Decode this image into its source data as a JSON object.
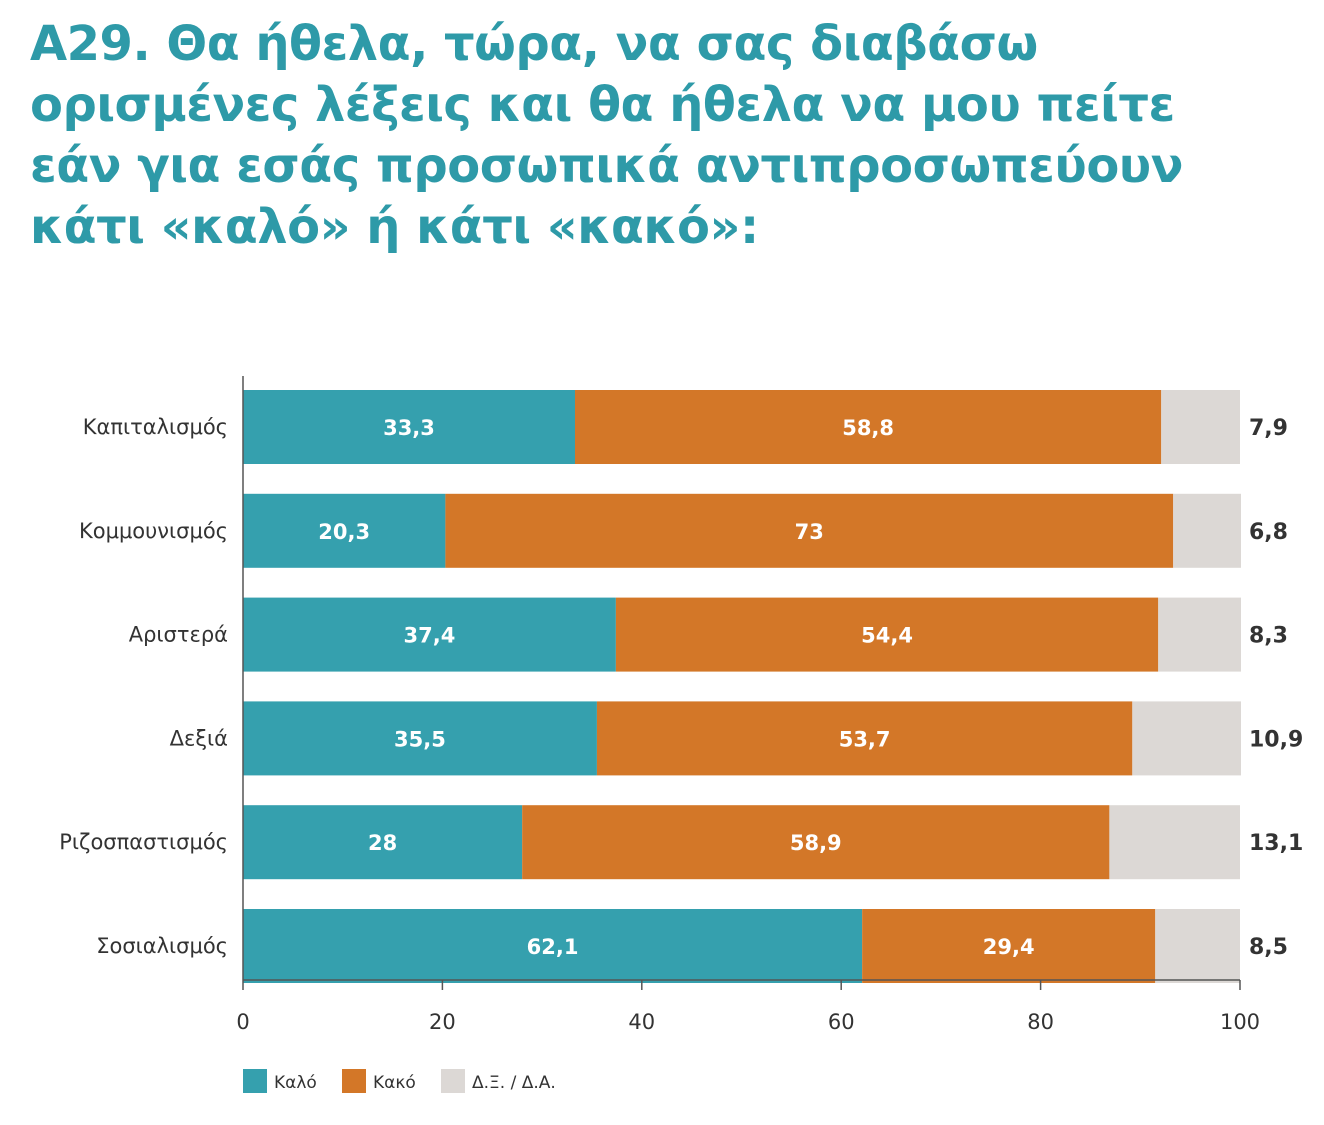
{
  "title_lines": [
    "Α29. Θα ήθελα, τώρα, να σας διαβάσω",
    "ορισμένες λέξεις και θα ήθελα να μου πείτε",
    "εάν για εσάς προσωπικά αντιπροσωπεύουν",
    "κάτι «καλό» ή κάτι «κακό»:"
  ],
  "colors": {
    "title": "#2e9aa8",
    "kalo": "#35a0ae",
    "kako": "#d37728",
    "dk": "#dcd8d5",
    "axis": "#555555"
  },
  "chart_data": {
    "type": "bar",
    "orientation": "horizontal",
    "stacked": true,
    "title": "Α29. Θα ήθελα, τώρα, να σας διαβάσω ορισμένες λέξεις και θα ήθελα να μου πείτε εάν για εσάς προσωπικά αντιπροσωπεύουν κάτι «καλό» ή κάτι «κακό»:",
    "categories": [
      "Καπιταλισμός",
      "Κομμουνισμός",
      "Αριστερά",
      "Δεξιά",
      "Ριζοσπαστισμός",
      "Σοσιαλισμός"
    ],
    "series": [
      {
        "name": "Καλό",
        "values": [
          33.3,
          20.3,
          37.4,
          35.5,
          28,
          62.1
        ],
        "labels": [
          "33,3",
          "20,3",
          "37,4",
          "35,5",
          "28",
          "62,1"
        ],
        "color": "#35a0ae"
      },
      {
        "name": "Κακό",
        "values": [
          58.8,
          73,
          54.4,
          53.7,
          58.9,
          29.4
        ],
        "labels": [
          "58,8",
          "73",
          "54,4",
          "53,7",
          "58,9",
          "29,4"
        ],
        "color": "#d37728"
      },
      {
        "name": "Δ.Ξ. / Δ.Α.",
        "values": [
          7.9,
          6.8,
          8.3,
          10.9,
          13.1,
          8.5
        ],
        "labels": [
          "7,9",
          "6,8",
          "8,3",
          "10,9",
          "13,1",
          "8,5"
        ],
        "color": "#dcd8d5"
      }
    ],
    "xlim": [
      0,
      100
    ],
    "xticks": [
      0,
      20,
      40,
      60,
      80,
      100
    ],
    "xlabel": "",
    "ylabel": "",
    "grid": false,
    "legend_position": "bottom-left"
  }
}
